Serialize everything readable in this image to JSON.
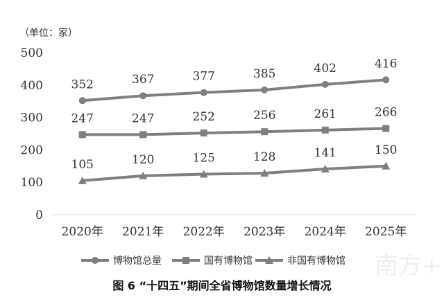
{
  "chart_data": {
    "type": "line",
    "unit_label": "（单位：家）",
    "caption": "图 6 “十四五”期间全省博物馆数量增长情况",
    "categories": [
      "2020年",
      "2021年",
      "2022年",
      "2023年",
      "2024年",
      "2025年"
    ],
    "ylim": [
      0,
      500
    ],
    "yticks": [
      "0",
      "100",
      "200",
      "300",
      "400",
      "500"
    ],
    "grid": false,
    "legend_position": "bottom",
    "series": [
      {
        "name": "博物馆总量",
        "marker": "circle",
        "color": "#7f7f7f",
        "values": [
          352,
          367,
          377,
          385,
          402,
          416
        ]
      },
      {
        "name": "国有博物馆",
        "marker": "square",
        "color": "#7f7f7f",
        "values": [
          247,
          247,
          252,
          256,
          261,
          266
        ]
      },
      {
        "name": "非国有博物馆",
        "marker": "triangle",
        "color": "#7f7f7f",
        "values": [
          105,
          120,
          125,
          128,
          141,
          150
        ]
      }
    ]
  },
  "watermark": "南方+"
}
